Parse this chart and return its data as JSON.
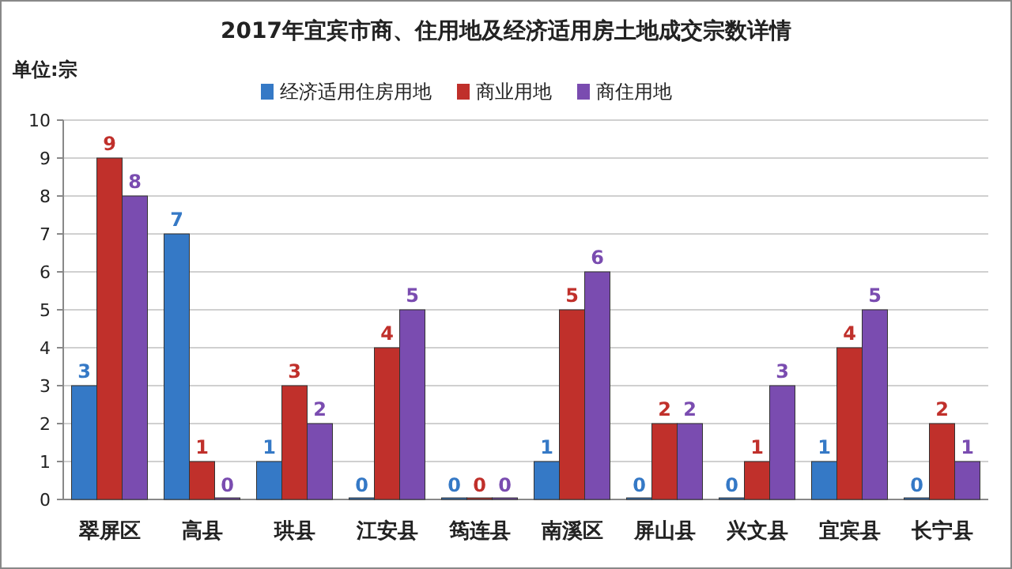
{
  "chart_data": {
    "type": "bar",
    "title": "2017年宜宾市商、住用地及经济适用房土地成交宗数详情",
    "ylabel": "单位:宗",
    "categories": [
      "翠屏区",
      "高县",
      "珙县",
      "江安县",
      "筠连县",
      "南溪区",
      "屏山县",
      "兴文县",
      "宜宾县",
      "长宁县"
    ],
    "series": [
      {
        "name": "经济适用住房用地",
        "color": "#3579c6",
        "values": [
          3,
          7,
          1,
          0,
          0,
          1,
          0,
          0,
          1,
          0
        ]
      },
      {
        "name": "商业用地",
        "color": "#c0302b",
        "values": [
          9,
          1,
          3,
          4,
          0,
          5,
          2,
          1,
          4,
          2
        ]
      },
      {
        "name": "商住用地",
        "color": "#7a4cb0",
        "values": [
          8,
          0,
          2,
          5,
          0,
          6,
          2,
          3,
          5,
          1
        ]
      }
    ],
    "ylim": [
      0,
      10
    ],
    "yticks": [
      0,
      1,
      2,
      3,
      4,
      5,
      6,
      7,
      8,
      9,
      10
    ],
    "grid": "y",
    "legend": "top",
    "data_labels": true
  }
}
